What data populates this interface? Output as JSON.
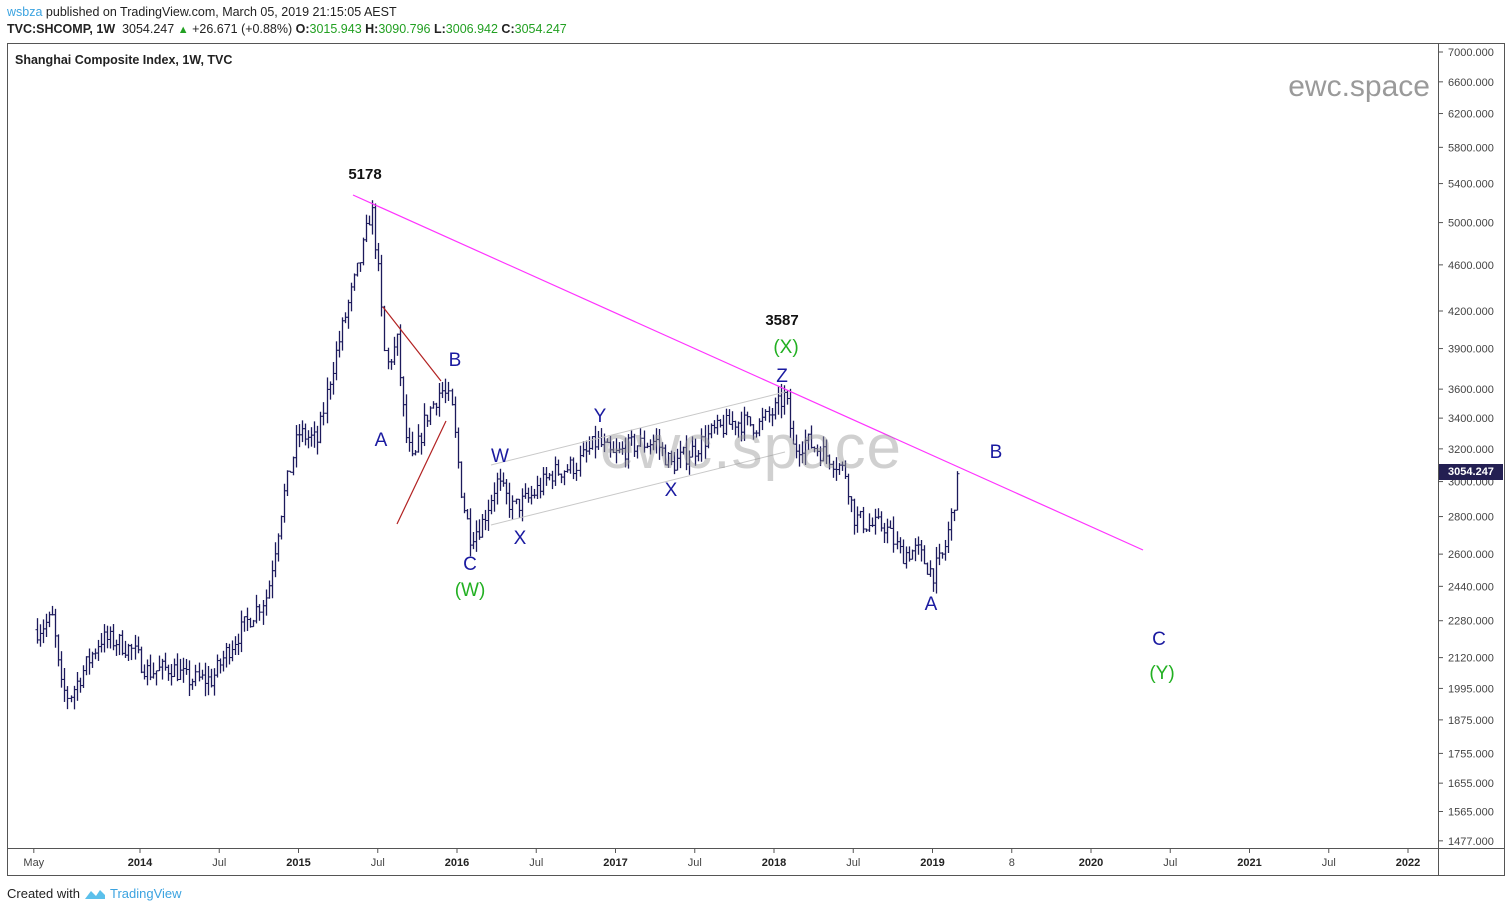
{
  "header": {
    "user": "wsbza",
    "published": "published on TradingView.com, March 05, 2019 21:15:05 AEST",
    "symbol": "TVC:SHCOMP, 1W",
    "last": "3054.247",
    "change": "+26.671 (+0.88%)",
    "o_label": "O:",
    "o": "3015.943",
    "h_label": "H:",
    "h": "3090.796",
    "l_label": "L:",
    "l": "3006.942",
    "c_label": "C:",
    "c": "3054.247"
  },
  "footer": {
    "created_with": "Created with",
    "brand": "TradingView"
  },
  "watermark": "ewc.space",
  "colors": {
    "bars": "#1c1a5c",
    "trendline": "#ff33ff",
    "triangle": "#b22222",
    "channel": "#c8c8c8",
    "wave_blue": "#1a1aa0",
    "wave_green": "#22b022",
    "price_tag": "#231f52"
  },
  "chart_data": {
    "type": "ohlc",
    "title": "Shanghai Composite Index, 1W, TVC",
    "scale": "log",
    "ylim": [
      1420,
      7300
    ],
    "xlim": [
      2013.3,
      2022.3
    ],
    "y_ticks": [
      "7000.000",
      "6600.000",
      "6200.000",
      "5800.000",
      "5400.000",
      "5000.000",
      "4600.000",
      "4200.000",
      "3900.000",
      "3600.000",
      "3400.000",
      "3200.000",
      "3000.000",
      "2800.000",
      "2600.000",
      "2440.000",
      "2280.000",
      "2120.000",
      "1995.000",
      "1875.000",
      "1755.000",
      "1655.000",
      "1565.000",
      "1477.000"
    ],
    "x_ticks": [
      {
        "t": 2013.33,
        "label": "May",
        "bold": false
      },
      {
        "t": 2014.0,
        "label": "2014",
        "bold": true
      },
      {
        "t": 2014.5,
        "label": "Jul",
        "bold": false
      },
      {
        "t": 2015.0,
        "label": "2015",
        "bold": true
      },
      {
        "t": 2015.5,
        "label": "Jul",
        "bold": false
      },
      {
        "t": 2016.0,
        "label": "2016",
        "bold": true
      },
      {
        "t": 2016.5,
        "label": "Jul",
        "bold": false
      },
      {
        "t": 2017.0,
        "label": "2017",
        "bold": true
      },
      {
        "t": 2017.5,
        "label": "Jul",
        "bold": false
      },
      {
        "t": 2018.0,
        "label": "2018",
        "bold": true
      },
      {
        "t": 2018.5,
        "label": "Jul",
        "bold": false
      },
      {
        "t": 2019.0,
        "label": "2019",
        "bold": true
      },
      {
        "t": 2019.5,
        "label": "8",
        "bold": false
      },
      {
        "t": 2020.0,
        "label": "2020",
        "bold": true
      },
      {
        "t": 2020.5,
        "label": "Jul",
        "bold": false
      },
      {
        "t": 2021.0,
        "label": "2021",
        "bold": true
      },
      {
        "t": 2021.5,
        "label": "Jul",
        "bold": false
      },
      {
        "t": 2022.0,
        "label": "2022",
        "bold": true
      }
    ],
    "last_price": "3054.247",
    "price_path": [
      [
        2013.35,
        2240
      ],
      [
        2013.45,
        2290
      ],
      [
        2013.5,
        2000
      ],
      [
        2013.55,
        1960
      ],
      [
        2013.65,
        2080
      ],
      [
        2013.75,
        2200
      ],
      [
        2013.85,
        2190
      ],
      [
        2013.95,
        2150
      ],
      [
        2014.05,
        2060
      ],
      [
        2014.2,
        2080
      ],
      [
        2014.3,
        2030
      ],
      [
        2014.45,
        2030
      ],
      [
        2014.55,
        2150
      ],
      [
        2014.7,
        2300
      ],
      [
        2014.8,
        2400
      ],
      [
        2014.9,
        2900
      ],
      [
        2015.0,
        3300
      ],
      [
        2015.12,
        3250
      ],
      [
        2015.2,
        3700
      ],
      [
        2015.3,
        4200
      ],
      [
        2015.4,
        4700
      ],
      [
        2015.46,
        5166
      ],
      [
        2015.5,
        4600
      ],
      [
        2015.55,
        3750
      ],
      [
        2015.62,
        3950
      ],
      [
        2015.67,
        3300
      ],
      [
        2015.72,
        3100
      ],
      [
        2015.8,
        3400
      ],
      [
        2015.9,
        3600
      ],
      [
        2015.96,
        3500
      ],
      [
        2016.03,
        2900
      ],
      [
        2016.08,
        2700
      ],
      [
        2016.15,
        2750
      ],
      [
        2016.25,
        3000
      ],
      [
        2016.35,
        2850
      ],
      [
        2016.45,
        2900
      ],
      [
        2016.6,
        3050
      ],
      [
        2016.75,
        3100
      ],
      [
        2016.88,
        3250
      ],
      [
        2016.98,
        3150
      ],
      [
        2017.1,
        3220
      ],
      [
        2017.25,
        3250
      ],
      [
        2017.35,
        3100
      ],
      [
        2017.5,
        3200
      ],
      [
        2017.6,
        3300
      ],
      [
        2017.75,
        3380
      ],
      [
        2017.9,
        3350
      ],
      [
        2018.0,
        3450
      ],
      [
        2018.07,
        3560
      ],
      [
        2018.12,
        3200
      ],
      [
        2018.2,
        3250
      ],
      [
        2018.35,
        3150
      ],
      [
        2018.45,
        3050
      ],
      [
        2018.5,
        2800
      ],
      [
        2018.6,
        2750
      ],
      [
        2018.7,
        2750
      ],
      [
        2018.8,
        2600
      ],
      [
        2018.9,
        2620
      ],
      [
        2019.0,
        2500
      ],
      [
        2019.07,
        2600
      ],
      [
        2019.12,
        2800
      ],
      [
        2019.17,
        3054
      ]
    ]
  },
  "annotations": {
    "high1": "5178",
    "high2": "3587",
    "A1": "A",
    "B1": "B",
    "C1": "C",
    "W1": "(W)",
    "W": "W",
    "X1": "X",
    "Y": "Y",
    "X2": "X",
    "Z": "Z",
    "X_paren": "(X)",
    "A2": "A",
    "B2": "B",
    "C2": "C",
    "Y_paren": "(Y)"
  }
}
